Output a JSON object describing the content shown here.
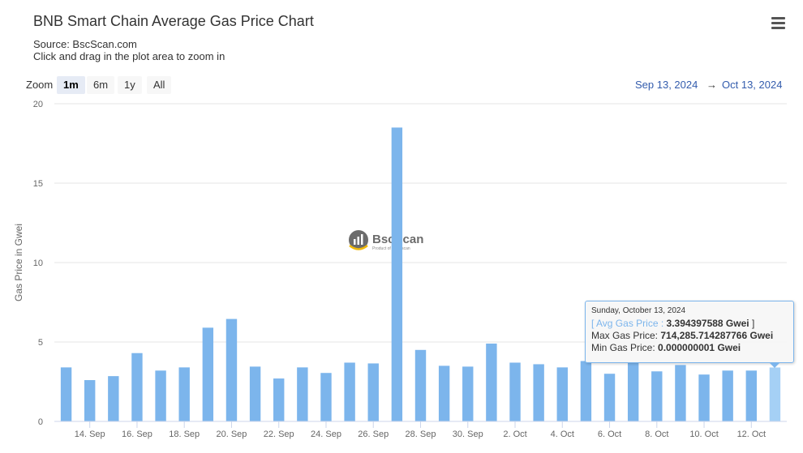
{
  "header": {
    "title": "BNB Smart Chain Average Gas Price Chart",
    "source": "Source: BscScan.com",
    "instruction": "Click and drag in the plot area to zoom in",
    "menu_icon": "hamburger-menu-icon"
  },
  "zoom": {
    "label": "Zoom",
    "buttons": [
      "1m",
      "6m",
      "1y",
      "All"
    ],
    "active": "1m"
  },
  "range": {
    "from": "Sep 13, 2024",
    "separator": "→",
    "to": "Oct 13, 2024"
  },
  "watermark": {
    "text": "BscScan",
    "subtext": "Product of Etherscan"
  },
  "tooltip": {
    "date": "Sunday, October 13, 2024",
    "bracket_open": "[ ",
    "avg_label": "Avg Gas Price :",
    "avg_value": "3.394397588 Gwei",
    "bracket_close": " ]",
    "max_label": "Max Gas Price:",
    "max_value": "714,285.714287766 Gwei",
    "min_label": "Min Gas Price:",
    "min_value": "0.000000001 Gwei"
  },
  "colors": {
    "bar": "#7cb5ec",
    "bar_highlight": "#a5d0f5",
    "grid": "#e6e6e6",
    "axis_text": "#666666",
    "range_text": "#335cad"
  },
  "chart_data": {
    "type": "bar",
    "title": "BNB Smart Chain Average Gas Price Chart",
    "ylabel": "Gas Price in Gwei",
    "xlabel": "",
    "ylim": [
      0,
      20
    ],
    "yticks": [
      0,
      5,
      10,
      15,
      20
    ],
    "xtick_labels": [
      "14. Sep",
      "16. Sep",
      "18. Sep",
      "20. Sep",
      "22. Sep",
      "24. Sep",
      "26. Sep",
      "28. Sep",
      "30. Sep",
      "2. Oct",
      "4. Oct",
      "6. Oct",
      "8. Oct",
      "10. Oct",
      "12. Oct"
    ],
    "categories": [
      "2024-09-13",
      "2024-09-14",
      "2024-09-15",
      "2024-09-16",
      "2024-09-17",
      "2024-09-18",
      "2024-09-19",
      "2024-09-20",
      "2024-09-21",
      "2024-09-22",
      "2024-09-23",
      "2024-09-24",
      "2024-09-25",
      "2024-09-26",
      "2024-09-27",
      "2024-09-28",
      "2024-09-29",
      "2024-09-30",
      "2024-10-01",
      "2024-10-02",
      "2024-10-03",
      "2024-10-04",
      "2024-10-05",
      "2024-10-06",
      "2024-10-07",
      "2024-10-08",
      "2024-10-09",
      "2024-10-10",
      "2024-10-11",
      "2024-10-12",
      "2024-10-13"
    ],
    "values": [
      3.4,
      2.6,
      2.85,
      4.3,
      3.2,
      3.4,
      5.9,
      6.45,
      3.45,
      2.7,
      3.4,
      3.05,
      3.7,
      3.65,
      18.5,
      4.5,
      3.5,
      3.45,
      4.9,
      3.7,
      3.6,
      3.4,
      3.8,
      3.0,
      3.7,
      3.15,
      3.55,
      2.95,
      3.2,
      3.2,
      3.394397588
    ],
    "highlighted_index": 30
  }
}
